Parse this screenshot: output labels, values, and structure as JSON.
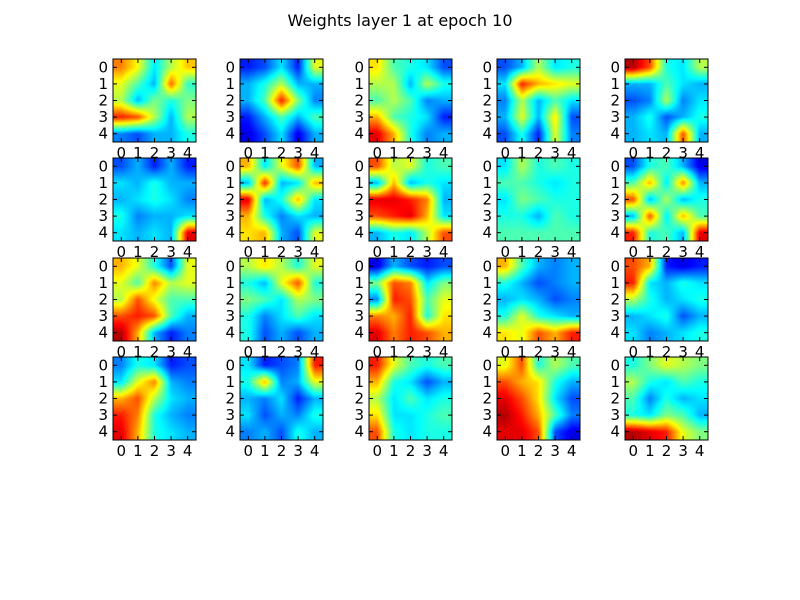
{
  "figure": {
    "title": "Weights layer 1 at epoch 10",
    "background": "#ffffff"
  },
  "chart_data": {
    "type": "heatmap",
    "title": "Weights layer 1 at epoch 10",
    "colormap": "jet",
    "interpolation": "smooth",
    "value_range": [
      0,
      1
    ],
    "grid_rows": 4,
    "grid_cols": 5,
    "tick_labels": {
      "x": [
        "0",
        "1",
        "2",
        "3",
        "4"
      ],
      "y": [
        "0",
        "1",
        "2",
        "3",
        "4"
      ]
    },
    "panels": [
      {
        "label": "r1c1",
        "matrix": [
          [
            0.75,
            0.62,
            0.35,
            0.55,
            0.68
          ],
          [
            0.6,
            0.45,
            0.3,
            0.78,
            0.42
          ],
          [
            0.55,
            0.3,
            0.5,
            0.4,
            0.5
          ],
          [
            0.85,
            0.8,
            0.55,
            0.3,
            0.55
          ],
          [
            0.25,
            0.2,
            0.3,
            0.3,
            0.4
          ]
        ]
      },
      {
        "label": "r1c2",
        "matrix": [
          [
            0.15,
            0.2,
            0.35,
            0.15,
            0.6
          ],
          [
            0.3,
            0.4,
            0.55,
            0.3,
            0.3
          ],
          [
            0.3,
            0.45,
            0.85,
            0.5,
            0.25
          ],
          [
            0.15,
            0.3,
            0.45,
            0.3,
            0.45
          ],
          [
            0.1,
            0.2,
            0.35,
            0.1,
            0.3
          ]
        ]
      },
      {
        "label": "r1c3",
        "matrix": [
          [
            0.65,
            0.45,
            0.4,
            0.35,
            0.2
          ],
          [
            0.55,
            0.55,
            0.3,
            0.55,
            0.4
          ],
          [
            0.45,
            0.55,
            0.45,
            0.25,
            0.3
          ],
          [
            0.7,
            0.45,
            0.4,
            0.35,
            0.15
          ],
          [
            0.9,
            0.7,
            0.4,
            0.25,
            0.3
          ]
        ]
      },
      {
        "label": "r1c4",
        "matrix": [
          [
            0.2,
            0.3,
            0.55,
            0.35,
            0.4
          ],
          [
            0.35,
            0.85,
            0.7,
            0.65,
            0.6
          ],
          [
            0.25,
            0.55,
            0.3,
            0.45,
            0.35
          ],
          [
            0.3,
            0.6,
            0.3,
            0.65,
            0.2
          ],
          [
            0.2,
            0.4,
            0.15,
            0.6,
            0.25
          ]
        ]
      },
      {
        "label": "r1c5",
        "matrix": [
          [
            0.95,
            0.8,
            0.4,
            0.35,
            0.55
          ],
          [
            0.3,
            0.3,
            0.45,
            0.35,
            0.3
          ],
          [
            0.2,
            0.25,
            0.55,
            0.25,
            0.35
          ],
          [
            0.3,
            0.4,
            0.2,
            0.3,
            0.4
          ],
          [
            0.3,
            0.35,
            0.3,
            0.8,
            0.3
          ]
        ]
      },
      {
        "label": "r2c1",
        "matrix": [
          [
            0.2,
            0.3,
            0.15,
            0.3,
            0.15
          ],
          [
            0.35,
            0.3,
            0.4,
            0.3,
            0.3
          ],
          [
            0.3,
            0.35,
            0.4,
            0.35,
            0.25
          ],
          [
            0.4,
            0.25,
            0.3,
            0.3,
            0.35
          ],
          [
            0.35,
            0.3,
            0.35,
            0.3,
            0.9
          ]
        ]
      },
      {
        "label": "r2c2",
        "matrix": [
          [
            0.7,
            0.35,
            0.6,
            0.8,
            0.3
          ],
          [
            0.3,
            0.85,
            0.3,
            0.35,
            0.7
          ],
          [
            0.9,
            0.3,
            0.4,
            0.7,
            0.35
          ],
          [
            0.7,
            0.4,
            0.25,
            0.35,
            0.3
          ],
          [
            0.65,
            0.7,
            0.3,
            0.2,
            0.6
          ]
        ]
      },
      {
        "label": "r2c3",
        "matrix": [
          [
            0.8,
            0.55,
            0.6,
            0.4,
            0.45
          ],
          [
            0.3,
            0.7,
            0.3,
            0.4,
            0.35
          ],
          [
            0.9,
            0.9,
            0.85,
            0.75,
            0.3
          ],
          [
            0.8,
            0.85,
            0.9,
            0.7,
            0.35
          ],
          [
            0.3,
            0.4,
            0.35,
            0.55,
            0.8
          ]
        ]
      },
      {
        "label": "r2c4",
        "matrix": [
          [
            0.35,
            0.55,
            0.4,
            0.45,
            0.4
          ],
          [
            0.45,
            0.45,
            0.4,
            0.35,
            0.4
          ],
          [
            0.35,
            0.5,
            0.45,
            0.4,
            0.4
          ],
          [
            0.4,
            0.4,
            0.3,
            0.45,
            0.4
          ],
          [
            0.45,
            0.45,
            0.45,
            0.45,
            0.45
          ]
        ]
      },
      {
        "label": "r2c5",
        "matrix": [
          [
            0.2,
            0.4,
            0.45,
            0.3,
            0.1
          ],
          [
            0.45,
            0.7,
            0.35,
            0.75,
            0.3
          ],
          [
            0.8,
            0.3,
            0.55,
            0.3,
            0.4
          ],
          [
            0.3,
            0.8,
            0.35,
            0.7,
            0.45
          ],
          [
            0.85,
            0.4,
            0.45,
            0.3,
            0.9
          ]
        ]
      },
      {
        "label": "r3c1",
        "matrix": [
          [
            0.7,
            0.6,
            0.4,
            0.2,
            0.6
          ],
          [
            0.6,
            0.45,
            0.75,
            0.55,
            0.6
          ],
          [
            0.55,
            0.8,
            0.6,
            0.45,
            0.45
          ],
          [
            0.8,
            0.85,
            0.8,
            0.45,
            0.3
          ],
          [
            0.95,
            0.7,
            0.3,
            0.15,
            0.25
          ]
        ]
      },
      {
        "label": "r3c2",
        "matrix": [
          [
            0.55,
            0.65,
            0.55,
            0.4,
            0.6
          ],
          [
            0.4,
            0.3,
            0.6,
            0.8,
            0.4
          ],
          [
            0.5,
            0.45,
            0.35,
            0.55,
            0.5
          ],
          [
            0.4,
            0.25,
            0.35,
            0.45,
            0.35
          ],
          [
            0.4,
            0.2,
            0.3,
            0.2,
            0.3
          ]
        ]
      },
      {
        "label": "r3c3",
        "matrix": [
          [
            0.1,
            0.3,
            0.2,
            0.15,
            0.2
          ],
          [
            0.5,
            0.8,
            0.75,
            0.35,
            0.5
          ],
          [
            0.25,
            0.85,
            0.8,
            0.45,
            0.6
          ],
          [
            0.75,
            0.7,
            0.85,
            0.4,
            0.65
          ],
          [
            0.9,
            0.75,
            0.85,
            0.8,
            0.7
          ]
        ]
      },
      {
        "label": "r3c4",
        "matrix": [
          [
            0.7,
            0.45,
            0.3,
            0.25,
            0.3
          ],
          [
            0.4,
            0.3,
            0.2,
            0.25,
            0.3
          ],
          [
            0.3,
            0.35,
            0.3,
            0.2,
            0.25
          ],
          [
            0.4,
            0.6,
            0.4,
            0.35,
            0.3
          ],
          [
            0.65,
            0.6,
            0.8,
            0.7,
            0.85
          ]
        ]
      },
      {
        "label": "r3c5",
        "matrix": [
          [
            0.8,
            0.7,
            0.15,
            0.1,
            0.15
          ],
          [
            0.85,
            0.35,
            0.3,
            0.4,
            0.35
          ],
          [
            0.55,
            0.4,
            0.3,
            0.35,
            0.4
          ],
          [
            0.3,
            0.35,
            0.4,
            0.2,
            0.3
          ],
          [
            0.35,
            0.25,
            0.3,
            0.35,
            0.4
          ]
        ]
      },
      {
        "label": "r4c1",
        "matrix": [
          [
            0.25,
            0.4,
            0.35,
            0.15,
            0.2
          ],
          [
            0.35,
            0.6,
            0.75,
            0.3,
            0.25
          ],
          [
            0.7,
            0.8,
            0.55,
            0.35,
            0.3
          ],
          [
            0.85,
            0.75,
            0.4,
            0.3,
            0.25
          ],
          [
            0.9,
            0.7,
            0.4,
            0.35,
            0.3
          ]
        ]
      },
      {
        "label": "r4c2",
        "matrix": [
          [
            0.35,
            0.15,
            0.2,
            0.25,
            0.85
          ],
          [
            0.4,
            0.7,
            0.25,
            0.3,
            0.6
          ],
          [
            0.3,
            0.25,
            0.35,
            0.15,
            0.3
          ],
          [
            0.35,
            0.2,
            0.3,
            0.25,
            0.4
          ],
          [
            0.25,
            0.3,
            0.2,
            0.4,
            0.3
          ]
        ]
      },
      {
        "label": "r4c3",
        "matrix": [
          [
            0.85,
            0.6,
            0.45,
            0.4,
            0.45
          ],
          [
            0.7,
            0.4,
            0.35,
            0.2,
            0.3
          ],
          [
            0.55,
            0.35,
            0.45,
            0.35,
            0.4
          ],
          [
            0.65,
            0.35,
            0.35,
            0.4,
            0.45
          ],
          [
            0.8,
            0.4,
            0.35,
            0.4,
            0.4
          ]
        ]
      },
      {
        "label": "r4c4",
        "matrix": [
          [
            0.6,
            0.8,
            0.4,
            0.55,
            0.45
          ],
          [
            0.8,
            0.7,
            0.65,
            0.4,
            0.3
          ],
          [
            0.9,
            0.8,
            0.65,
            0.35,
            0.2
          ],
          [
            0.95,
            0.85,
            0.7,
            0.45,
            0.25
          ],
          [
            0.9,
            0.9,
            0.8,
            0.2,
            0.1
          ]
        ]
      },
      {
        "label": "r4c5",
        "matrix": [
          [
            0.4,
            0.5,
            0.6,
            0.55,
            0.5
          ],
          [
            0.55,
            0.4,
            0.35,
            0.45,
            0.4
          ],
          [
            0.45,
            0.25,
            0.4,
            0.3,
            0.35
          ],
          [
            0.4,
            0.35,
            0.5,
            0.45,
            0.3
          ],
          [
            0.95,
            0.9,
            0.85,
            0.6,
            0.5
          ]
        ]
      }
    ]
  }
}
